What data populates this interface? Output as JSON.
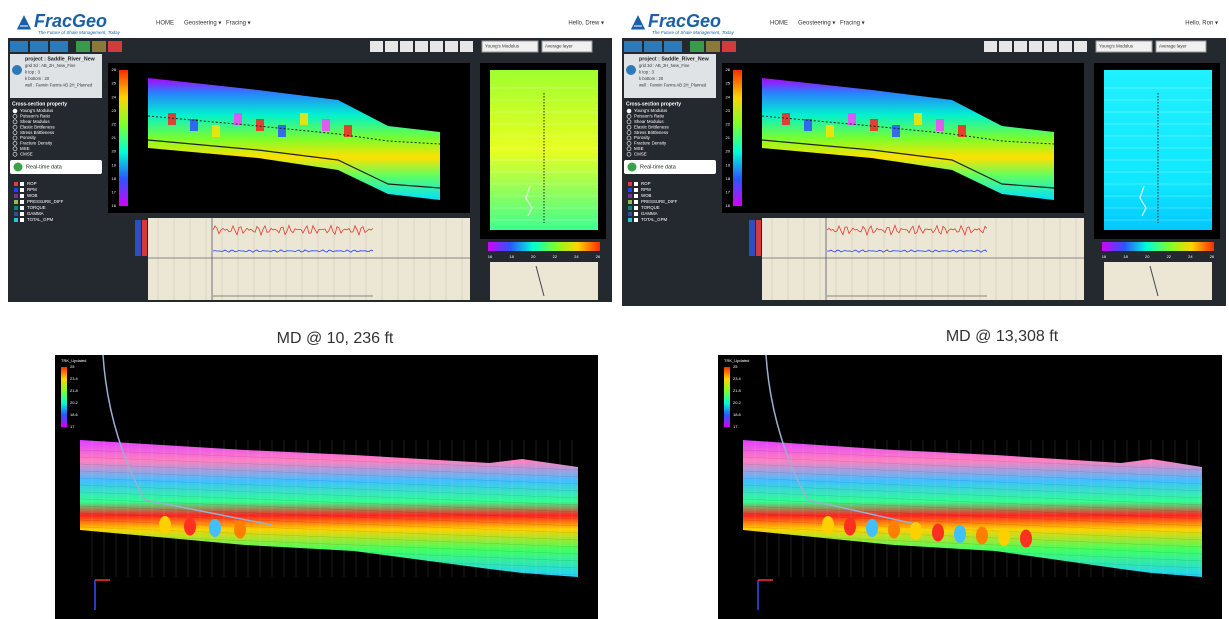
{
  "panels": [
    {
      "header": {
        "logo": "FracGeo",
        "tagline": "The Future of Shale Management, Today",
        "nav": [
          "HOME",
          "Geosteering ▾",
          "Fracing ▾"
        ],
        "user": "Hello, Drew ▾"
      },
      "selects": [
        "Young's Modulus",
        "Average layer"
      ],
      "project": {
        "title": "project : Saddle_River_New",
        "lines": [
          "grid 3d : AB_2H_New_Fine",
          "k top : 3",
          "k bottom : 20",
          "well : Fannin Farms AB 2H_Planned"
        ]
      },
      "cross_section": {
        "title": "Cross-section property",
        "options": [
          "Young's Modulus",
          "Poisson's Ratio",
          "Shear Modulus",
          "Elastic Brittleness",
          "Stress Brittleness",
          "Porosity",
          "Fracture Density",
          "MSE",
          "CMSE"
        ]
      },
      "realtime": {
        "title": "Real-time data",
        "channels": [
          "ROP",
          "RPM",
          "WOB",
          "PRESSURE_DIFF",
          "TORQUE",
          "GAMMA",
          "TOTAL_GPM"
        ]
      },
      "colorbar_ticks": [
        "26",
        "25",
        "24",
        "23",
        "22",
        "21",
        "20",
        "19",
        "18",
        "17",
        "16"
      ],
      "hbar_ticks": [
        "16",
        "18",
        "20",
        "22",
        "24",
        "26"
      ]
    },
    {
      "header": {
        "logo": "FracGeo",
        "tagline": "The Future of Shale Management, Today",
        "nav": [
          "HOME",
          "Geosteering ▾",
          "Fracing ▾"
        ],
        "user": "Hello, Ron ▾"
      },
      "selects": [
        "Young's Modulus",
        "Average layer"
      ],
      "project": {
        "title": "project : Saddle_River_New",
        "lines": [
          "grid 3d : AB_2H_New_Fine",
          "k top : 3",
          "k bottom : 20",
          "well : Fannin Farms AB 2H_Planned"
        ]
      },
      "cross_section": {
        "title": "Cross-section property",
        "options": [
          "Young's Modulus",
          "Poisson's Ratio",
          "Shear Modulus",
          "Elastic Brittleness",
          "Stress Brittleness",
          "Porosity",
          "Fracture Density",
          "MSE",
          "CMSE"
        ]
      },
      "realtime": {
        "title": "Real-time data",
        "channels": [
          "ROP",
          "RPM",
          "WOB",
          "PRESSURE_DIFF",
          "TORQUE",
          "GAMMA",
          "TOTAL_GPM"
        ]
      },
      "colorbar_ticks": [
        "26",
        "25",
        "24",
        "23",
        "22",
        "21",
        "20",
        "19",
        "18",
        "17",
        "16"
      ],
      "hbar_ticks": [
        "16",
        "18",
        "20",
        "22",
        "24",
        "26"
      ]
    }
  ],
  "captions": [
    "MD @ 10, 236 ft",
    "MD @ 13,308 ft"
  ],
  "views": [
    {
      "legend_title": "TRK_Updated",
      "legend_ticks": [
        "25",
        "23.4",
        "21.8",
        "20.2",
        "18.6",
        "17"
      ]
    },
    {
      "legend_title": "TRK_Updated",
      "legend_ticks": [
        "25",
        "23.4",
        "21.8",
        "20.2",
        "18.6",
        "17"
      ]
    }
  ]
}
